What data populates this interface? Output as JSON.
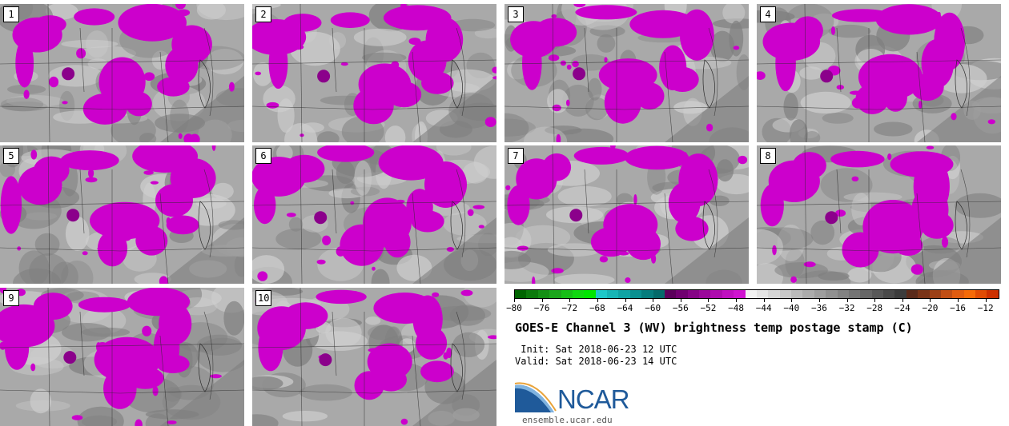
{
  "figure": {
    "title": "GOES-E Channel 3 (WV) brightness temp postage stamp (C)",
    "init_label": " Init: Sat 2018-06-23 12 UTC",
    "valid_label": "Valid: Sat 2018-06-23 14 UTC",
    "logo_text": "NCAR",
    "logo_url": "ensemble.ucar.edu"
  },
  "panels": [
    {
      "label": "1"
    },
    {
      "label": "2"
    },
    {
      "label": "3"
    },
    {
      "label": "4"
    },
    {
      "label": "5"
    },
    {
      "label": "6"
    },
    {
      "label": "7"
    },
    {
      "label": "8"
    },
    {
      "label": "9"
    },
    {
      "label": "10"
    }
  ],
  "colorbar": {
    "min": -80,
    "max": -10,
    "tick_labels": [
      "−80",
      "−76",
      "−72",
      "−68",
      "−64",
      "−60",
      "−56",
      "−52",
      "−48",
      "−44",
      "−40",
      "−36",
      "−32",
      "−28",
      "−24",
      "−20",
      "−16",
      "−12"
    ],
    "colors": [
      "#006400",
      "#0b7a0b",
      "#149014",
      "#1ba61b",
      "#17bf17",
      "#10d810",
      "#00e600",
      "#1ec8c8",
      "#17b5b5",
      "#10a3a3",
      "#0a9090",
      "#067d7d",
      "#046a6a",
      "#5a005a",
      "#700070",
      "#860486",
      "#9a089a",
      "#ae0cae",
      "#c010c0",
      "#d014d0",
      "#f2f2f2",
      "#e4e4e4",
      "#d6d6d6",
      "#c8c8c8",
      "#bababa",
      "#acacac",
      "#9e9e9e",
      "#909090",
      "#828282",
      "#747474",
      "#666666",
      "#585858",
      "#4a4a4a",
      "#3c3c3c",
      "#5a2a1a",
      "#7a3418",
      "#9c4016",
      "#c04e14",
      "#e05c10",
      "#f56a08",
      "#e04c04",
      "#cc3000"
    ]
  },
  "map_colors": {
    "land_base": "#a9a9a9",
    "light_gray": "#cfcfcf",
    "dark_gray": "#7f7f7f",
    "magenta": "#cc00cc",
    "dark_magenta": "#8b008b",
    "borders": "#2a2a2a"
  }
}
